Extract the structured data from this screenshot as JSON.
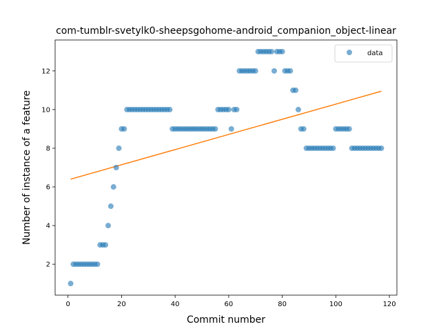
{
  "chart_data": {
    "type": "scatter",
    "title": "com-tumblr-svetylk0-sheepsgohome-android_companion_object-linear",
    "xlabel": "Commit number",
    "ylabel": "Number of instance of a feature",
    "xlim": [
      -4.8,
      122.8
    ],
    "ylim": [
      0.4,
      13.6
    ],
    "xticks": [
      0,
      20,
      40,
      60,
      80,
      100,
      120
    ],
    "yticks": [
      2,
      4,
      6,
      8,
      10,
      12
    ],
    "legend": {
      "position": "top-right",
      "entries": [
        "data"
      ]
    },
    "colors": {
      "data": "#1f77b4",
      "fit": "#ff7f0e"
    },
    "series": [
      {
        "name": "data",
        "kind": "scatter",
        "x": [
          1,
          2,
          3,
          4,
          5,
          6,
          7,
          8,
          9,
          10,
          11,
          12,
          13,
          14,
          15,
          16,
          17,
          18,
          19,
          20,
          21,
          22,
          23,
          24,
          25,
          26,
          27,
          28,
          29,
          30,
          31,
          32,
          33,
          34,
          35,
          36,
          37,
          38,
          39,
          40,
          41,
          42,
          43,
          44,
          45,
          46,
          47,
          48,
          49,
          50,
          51,
          52,
          53,
          54,
          55,
          56,
          57,
          58,
          59,
          60,
          61,
          62,
          63,
          64,
          65,
          66,
          67,
          68,
          69,
          70,
          71,
          72,
          73,
          74,
          75,
          76,
          77,
          78,
          79,
          80,
          81,
          82,
          83,
          84,
          85,
          86,
          87,
          88,
          89,
          90,
          91,
          92,
          93,
          94,
          95,
          96,
          97,
          98,
          99,
          100,
          101,
          102,
          103,
          104,
          105,
          106,
          107,
          108,
          109,
          110,
          111,
          112,
          113,
          114,
          115,
          116,
          117
        ],
        "y": [
          1,
          2,
          2,
          2,
          2,
          2,
          2,
          2,
          2,
          2,
          2,
          3,
          3,
          3,
          4,
          5,
          6,
          7,
          8,
          9,
          9,
          10,
          10,
          10,
          10,
          10,
          10,
          10,
          10,
          10,
          10,
          10,
          10,
          10,
          10,
          10,
          10,
          10,
          9,
          9,
          9,
          9,
          9,
          9,
          9,
          9,
          9,
          9,
          9,
          9,
          9,
          9,
          9,
          9,
          9,
          10,
          10,
          10,
          10,
          10,
          9,
          10,
          10,
          12,
          12,
          12,
          12,
          12,
          12,
          12,
          13,
          13,
          13,
          13,
          13,
          13,
          12,
          13,
          13,
          13,
          12,
          12,
          12,
          11,
          11,
          10,
          9,
          9,
          8,
          8,
          8,
          8,
          8,
          8,
          8,
          8,
          8,
          8,
          8,
          9,
          9,
          9,
          9,
          9,
          9,
          8,
          8,
          8,
          8,
          8,
          8,
          8,
          8,
          8,
          8,
          8,
          8
        ]
      },
      {
        "name": "",
        "kind": "line",
        "x": [
          1,
          117
        ],
        "y": [
          6.4,
          10.95
        ]
      }
    ]
  }
}
